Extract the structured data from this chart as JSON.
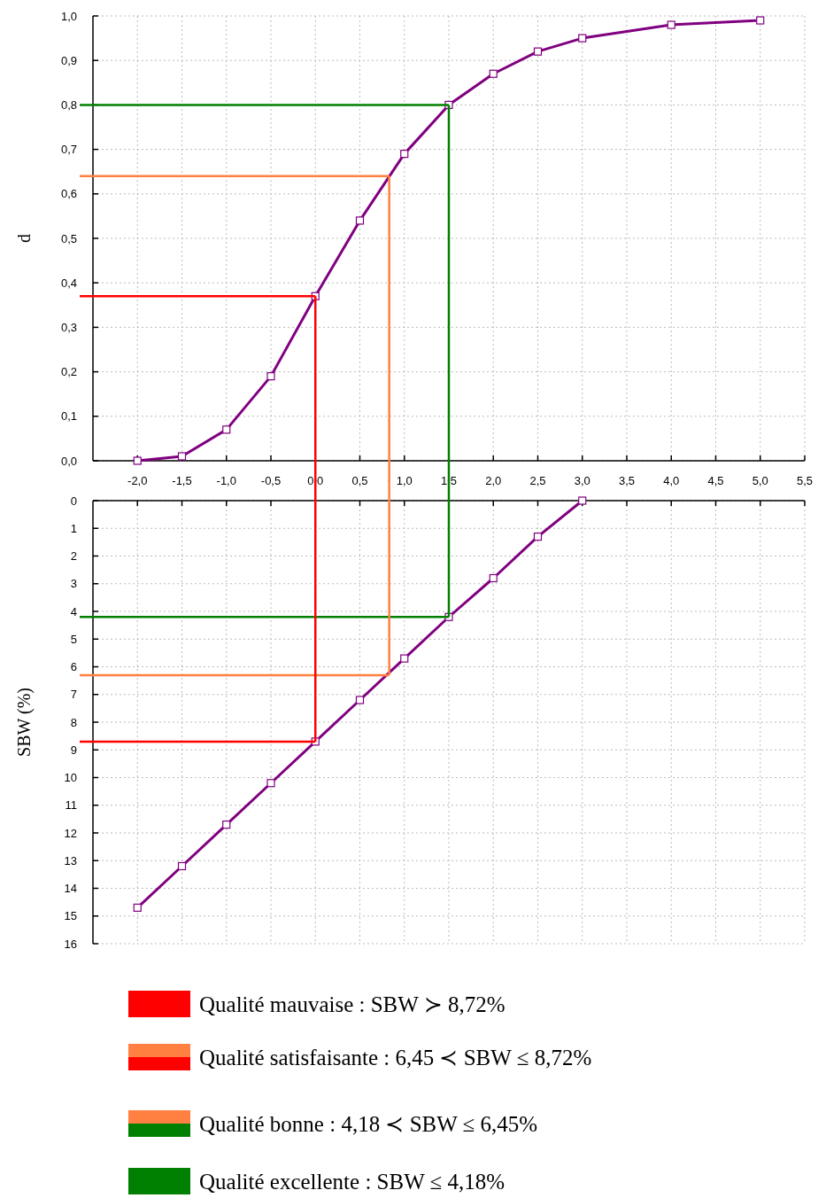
{
  "chart_data": [
    {
      "type": "line",
      "ylabel": "d",
      "x": [
        -2,
        -1.5,
        -1,
        -0.5,
        0,
        0.5,
        1,
        1.5,
        2,
        2.5,
        3,
        4,
        5
      ],
      "series": [
        {
          "color": "#800080",
          "values": [
            0.0,
            0.01,
            0.07,
            0.19,
            0.37,
            0.54,
            0.69,
            0.8,
            0.87,
            0.92,
            0.95,
            0.98,
            0.99
          ]
        }
      ],
      "xlim": [
        -2.5,
        5.5
      ],
      "xticks": [
        {
          "value": -2,
          "label": "-2,0"
        },
        {
          "value": -1.5,
          "label": "-1,5"
        },
        {
          "value": -1,
          "label": "-1,0"
        },
        {
          "value": -0.5,
          "label": "-0,5"
        },
        {
          "value": 0,
          "label": "0,0"
        },
        {
          "value": 0.5,
          "label": "0,5"
        },
        {
          "value": 1,
          "label": "1,0"
        },
        {
          "value": 1.5,
          "label": "1,5"
        },
        {
          "value": 2,
          "label": "2,0"
        },
        {
          "value": 2.5,
          "label": "2,5"
        },
        {
          "value": 3,
          "label": "3,0"
        },
        {
          "value": 3.5,
          "label": "3,5"
        },
        {
          "value": 4,
          "label": "4,0"
        },
        {
          "value": 4.5,
          "label": "4,5"
        },
        {
          "value": 5,
          "label": "5,0"
        },
        {
          "value": 5.5,
          "label": "5,5"
        }
      ],
      "ylim": [
        0,
        1
      ],
      "yticks": [
        {
          "value": 0,
          "label": "0,0"
        },
        {
          "value": 0.1,
          "label": "0,1"
        },
        {
          "value": 0.2,
          "label": "0,2"
        },
        {
          "value": 0.3,
          "label": "0,3"
        },
        {
          "value": 0.4,
          "label": "0,4"
        },
        {
          "value": 0.5,
          "label": "0,5"
        },
        {
          "value": 0.6,
          "label": "0,6"
        },
        {
          "value": 0.7,
          "label": "0,7"
        },
        {
          "value": 0.8,
          "label": "0,8"
        },
        {
          "value": 0.9,
          "label": "0,9"
        },
        {
          "value": 1,
          "label": "1,0"
        }
      ],
      "marker": "square",
      "grid": true,
      "ref_lines": [
        {
          "axis": "y",
          "value": 0.37,
          "color": "#ff0000"
        },
        {
          "axis": "y",
          "value": 0.64,
          "color": "#ff8040"
        },
        {
          "axis": "y",
          "value": 0.8,
          "color": "#008000"
        },
        {
          "axis": "x",
          "value": 0,
          "color": "#ff0000"
        },
        {
          "axis": "x",
          "value": 0.83,
          "color": "#ff8040"
        },
        {
          "axis": "x",
          "value": 1.5,
          "color": "#008000"
        }
      ]
    },
    {
      "type": "line",
      "ylabel": "SBW (%)",
      "x": [
        -2,
        -1.5,
        -1,
        -0.5,
        0,
        0.5,
        1,
        1.5,
        2,
        2.5,
        3
      ],
      "series": [
        {
          "color": "#800080",
          "values": [
            14.7,
            13.2,
            11.7,
            10.2,
            8.7,
            7.2,
            5.7,
            4.2,
            2.8,
            1.3,
            0
          ]
        }
      ],
      "xlim": [
        -2.5,
        5.5
      ],
      "xticks": [
        {
          "value": -2,
          "label": null
        },
        {
          "value": -1.5,
          "label": null
        },
        {
          "value": -1,
          "label": null
        },
        {
          "value": -0.5,
          "label": null
        },
        {
          "value": 0,
          "label": null
        },
        {
          "value": 0.5,
          "label": null
        },
        {
          "value": 1,
          "label": null
        },
        {
          "value": 1.5,
          "label": null
        },
        {
          "value": 2,
          "label": null
        },
        {
          "value": 2.5,
          "label": null
        },
        {
          "value": 3,
          "label": null
        },
        {
          "value": 3.5,
          "label": null
        },
        {
          "value": 4,
          "label": null
        },
        {
          "value": 4.5,
          "label": null
        },
        {
          "value": 5,
          "label": null
        },
        {
          "value": 5.5,
          "label": null
        }
      ],
      "ylim": [
        16,
        0
      ],
      "yticks": [
        0,
        1,
        2,
        3,
        4,
        5,
        6,
        7,
        8,
        9,
        10,
        11,
        12,
        13,
        14,
        15,
        16
      ],
      "tick_labels": "y",
      "marker": "square",
      "grid": true,
      "ref_lines": [
        {
          "axis": "y",
          "value": 8.7,
          "color": "#ff0000"
        },
        {
          "axis": "y",
          "value": 6.3,
          "color": "#ff8040"
        },
        {
          "axis": "y",
          "value": 4.2,
          "color": "#008000"
        },
        {
          "axis": "x",
          "value": 0,
          "color": "#ff0000"
        },
        {
          "axis": "x",
          "value": 0.83,
          "color": "#ff8040"
        },
        {
          "axis": "x",
          "value": 1.5,
          "color": "#008000"
        }
      ],
      "annotations": [
        "Qualité mauvaise :  SBW ≻ 8,72%",
        "Qualité satisfaisante :  6,45 ≺ SBW ≤ 8,72%",
        "Qualité bonne :  4,18 ≺ SBW ≤ 6,45%",
        "Qualité excellente :  SBW ≤ 4,18%"
      ]
    }
  ]
}
